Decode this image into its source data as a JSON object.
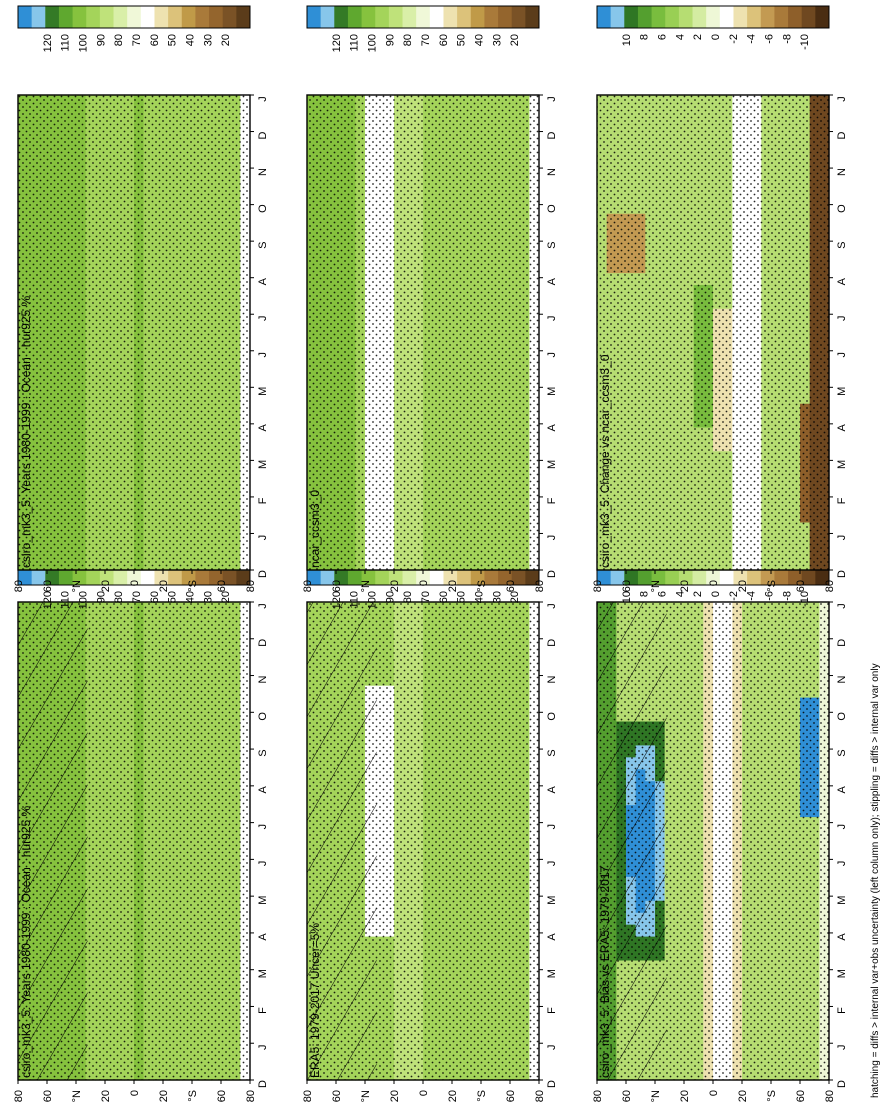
{
  "footer_note": "hatching = diffs > internal var+obs uncertainty (left column only); stippling = diffs > internal var only",
  "palettes": {
    "abs": [
      "#5b3c1a",
      "#7a5226",
      "#94652d",
      "#a97a3a",
      "#c09a48",
      "#dcc27a",
      "#eee2b0",
      "#ffffff",
      "#f0f8d8",
      "#d9efa8",
      "#bfe27a",
      "#a4d45a",
      "#86c23e",
      "#5fa82f",
      "#347a26",
      "#87c6ea",
      "#2f8fd6"
    ],
    "diff": [
      "#4a2d12",
      "#6f4820",
      "#8e5f2a",
      "#a97a3a",
      "#c39a52",
      "#dcc27a",
      "#eee2b0",
      "#ffffff",
      "#eef7d6",
      "#d4eca2",
      "#b6dd72",
      "#99cf54",
      "#79bd3e",
      "#549f2f",
      "#2f7624",
      "#87c6ea",
      "#2f8fd6"
    ]
  },
  "colorbar_labels": {
    "abs": [
      "120",
      "110",
      "100",
      "90",
      "80",
      "70",
      "60",
      "50",
      "40",
      "30",
      "20"
    ],
    "diff": [
      "10",
      "8",
      "6",
      "4",
      "2",
      "0",
      "-2",
      "-4",
      "-6",
      "-8",
      "-10"
    ]
  },
  "axes": {
    "months": [
      "D",
      "J",
      "F",
      "M",
      "A",
      "M",
      "J",
      "J",
      "A",
      "S",
      "O",
      "N",
      "D",
      "J"
    ],
    "lat_ticks": [
      "80",
      "60",
      "°N",
      "20",
      "0",
      "20",
      "°S",
      "60",
      "80"
    ]
  },
  "chart_data": [
    {
      "type": "heatmap",
      "title": "csiro_mk3_5: Years 1980-1999 : Ocean : hur925 %",
      "colorbar": "abs",
      "hatching": true,
      "stippling": true,
      "field": "abs_model"
    },
    {
      "type": "heatmap",
      "title": "csiro_mk3_5: Years 1980-1999 : Ocean : hur925 %",
      "colorbar": "abs",
      "hatching": false,
      "stippling": true,
      "field": "abs_model"
    },
    {
      "type": "heatmap",
      "title": "ERA5: 1979-2017 Uncer=5%",
      "colorbar": "abs",
      "hatching": true,
      "stippling": true,
      "field": "abs_era5"
    },
    {
      "type": "heatmap",
      "title": "ncar_ccsm3_0",
      "colorbar": "abs",
      "hatching": false,
      "stippling": true,
      "field": "abs_ncar"
    },
    {
      "type": "heatmap",
      "title": "csiro_mk3_5: Bias vs ERA5: 1979-2017",
      "colorbar": "diff",
      "hatching": true,
      "stippling": true,
      "field": "bias"
    },
    {
      "type": "heatmap",
      "title": "csiro_mk3_5: Change vs ncar_ccsm3_0",
      "colorbar": "diff",
      "hatching": false,
      "stippling": true,
      "field": "change"
    }
  ]
}
